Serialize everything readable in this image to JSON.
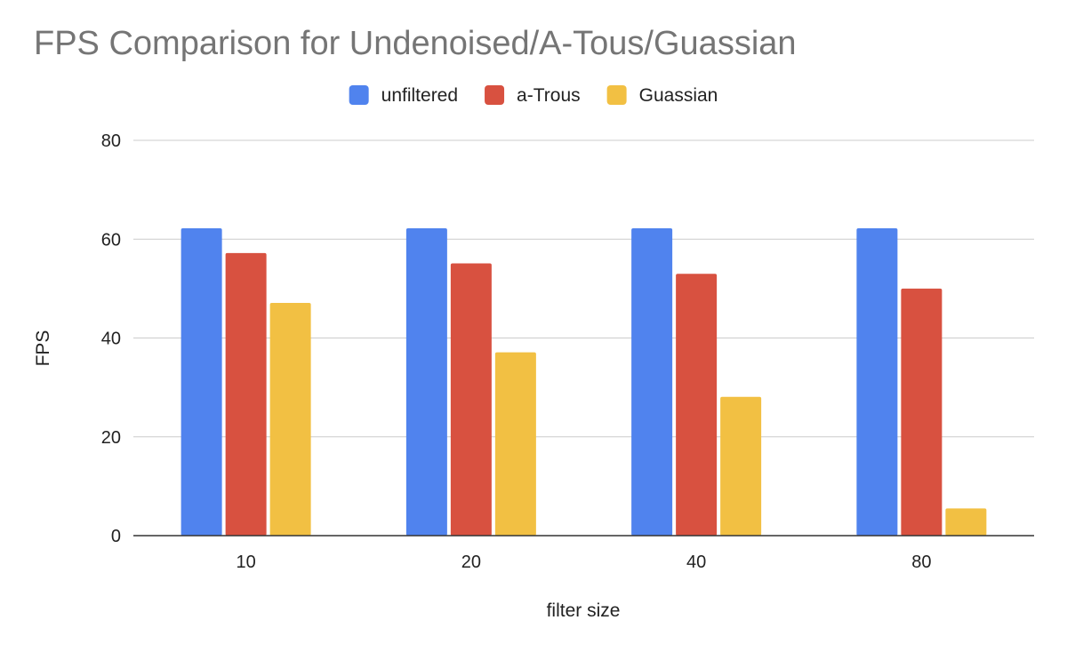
{
  "chart_data": {
    "type": "bar",
    "title": "FPS Comparison for Undenoised/A-Tous/Guassian",
    "xlabel": "filter size",
    "ylabel": "FPS",
    "categories": [
      "10",
      "20",
      "40",
      "80"
    ],
    "series": [
      {
        "name": "unfiltered",
        "color": "#5083EE",
        "values": [
          62.2,
          62.2,
          62.2,
          62.2
        ]
      },
      {
        "name": "a-Trous",
        "color": "#D85140",
        "values": [
          57.2,
          55.1,
          53,
          50
        ]
      },
      {
        "name": "Guassian",
        "color": "#F2C043",
        "values": [
          47.1,
          37.1,
          28.1,
          5.5
        ]
      }
    ],
    "ylim": [
      0,
      80
    ],
    "yticks": [
      "0",
      "20",
      "40",
      "60",
      "80"
    ],
    "grid": true,
    "legend_position": "top-center"
  }
}
